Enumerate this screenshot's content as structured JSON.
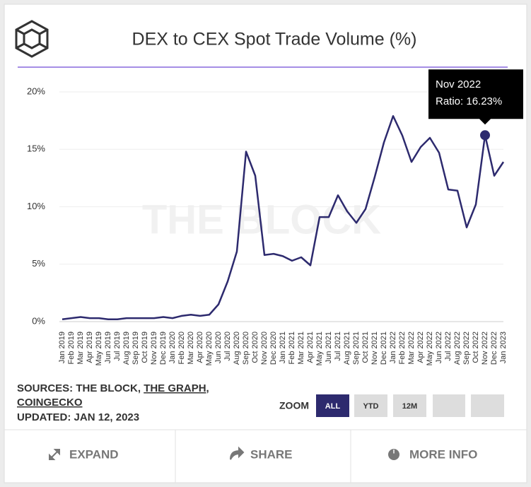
{
  "header": {
    "title": "DEX to CEX Spot Trade Volume (%)"
  },
  "watermark": "THE BLOCK",
  "chart_data": {
    "type": "line",
    "categories": [
      "Jan 2019",
      "Feb 2019",
      "Mar 2019",
      "Apr 2019",
      "May 2019",
      "Jun 2019",
      "Jul 2019",
      "Aug 2019",
      "Sep 2019",
      "Oct 2019",
      "Nov 2019",
      "Dec 2019",
      "Jan 2020",
      "Feb 2020",
      "Mar 2020",
      "Apr 2020",
      "May 2020",
      "Jun 2020",
      "Jul 2020",
      "Aug 2020",
      "Sep 2020",
      "Oct 2020",
      "Nov 2020",
      "Dec 2020",
      "Jan 2021",
      "Feb 2021",
      "Mar 2021",
      "Apr 2021",
      "May 2021",
      "Jun 2021",
      "Jul 2021",
      "Aug 2021",
      "Sep 2021",
      "Oct 2021",
      "Nov 2021",
      "Dec 2021",
      "Jan 2022",
      "Feb 2022",
      "Mar 2022",
      "Apr 2022",
      "May 2022",
      "Jun 2022",
      "Jul 2022",
      "Aug 2022",
      "Sep 2022",
      "Oct 2022",
      "Nov 2022",
      "Dec 2022",
      "Jan 2023"
    ],
    "series": [
      {
        "name": "Ratio",
        "color": "#2d2a6e",
        "values": [
          0.2,
          0.3,
          0.4,
          0.3,
          0.3,
          0.2,
          0.2,
          0.3,
          0.3,
          0.3,
          0.3,
          0.4,
          0.3,
          0.5,
          0.6,
          0.5,
          0.6,
          1.5,
          3.5,
          6.1,
          14.8,
          12.7,
          5.8,
          5.9,
          5.7,
          5.3,
          5.6,
          4.9,
          9.1,
          9.1,
          11.0,
          9.6,
          8.6,
          9.8,
          12.6,
          15.6,
          17.9,
          16.2,
          13.9,
          15.2,
          16.0,
          14.7,
          11.5,
          11.4,
          8.2,
          10.2,
          16.23,
          12.7,
          13.9
        ]
      }
    ],
    "ylim": [
      0,
      20
    ],
    "yticks": [
      {
        "value": 0,
        "label": "0%"
      },
      {
        "value": 5,
        "label": "5%"
      },
      {
        "value": 10,
        "label": "10%"
      },
      {
        "value": 15,
        "label": "15%"
      },
      {
        "value": 20,
        "label": "20%"
      }
    ],
    "grid": true,
    "tooltip": {
      "title": "Nov 2022",
      "label": "Ratio: 16.23%"
    }
  },
  "sources": [
    "SOURCES: THE BLOCK,",
    "THE GRAPH,",
    "COINGECKO"
  ],
  "updated": "UPDATED: JAN 12, 2023",
  "zoom": {
    "label": "ZOOM",
    "buttons": [
      "ALL",
      "YTD",
      "12M"
    ]
  },
  "footer": [
    "EXPAND",
    "SHARE",
    "MORE INFO"
  ]
}
